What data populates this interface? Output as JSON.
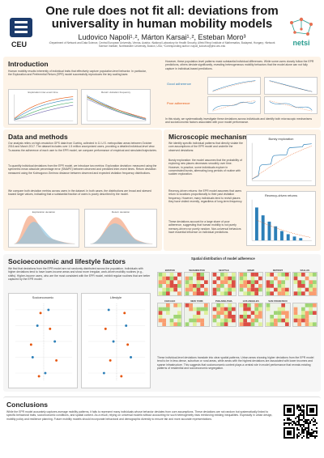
{
  "header": {
    "title_line1": "One rule does not fit all: deviations from",
    "title_line2": "universality in human mobility models",
    "authors": "Ludovico Napoli¹˒², Márton Karsai¹˒², Esteban Moro³",
    "affiliations": "¹Department of Network and Data Science, Central European University, Vienna, Austria; ²National Laboratory for Health Security, Alfréd Rényi Institute of Mathematics, Budapest, Hungary; ³Network Science Institute, Northeastern University, Boston, USA; *Corresponding author: napoli_ludovico@phd.ceu.edu",
    "ceu_label": "CEU",
    "nets_label": "netsi"
  },
  "intro": {
    "title": "Introduction",
    "text_left": "Human mobility results inherently of individual traits that effectively capture population-level behavior. In particular, the Exploration and Preferential Return (EPR) model successfully reproduces the key scaling laws:",
    "text_right": "However, these population-level patterns mask substantial individual differences. While some users closely follow the EPR predictions, others deviate significantly, revealing heterogeneous mobility behaviors that the model alone can not fully capture in individual-based predictions.",
    "bottom_text": "In this study, we systematically investigate these deviations across individuals and identify both microscopic mechanisms and socioeconomic factors associated with poor model performance.",
    "chart1_title": "Exploration inter-event time",
    "chart2_title": "Return visitation frequency",
    "good_label": "Good adherence",
    "poor_label": "Poor adherence"
  },
  "data": {
    "title": "Data and methods",
    "text": "Our analysis relies on high-resolution GPS data from Cuebiq, collected in 11 U.S. metropolitan areas between October 2016 and March 2017. The dataset includes over 1.5 million anonymized users, providing a detailed individual-level view. To assess the adherence of each user to the EPR model, we compare performance of empirical and simulated trajectories.",
    "text2": "To quantify individual deviations from the EPR model, we introduce two metrics: Exploration deviation: measured using the symmetric mean absolute percentage error (SMAPE) between observed and predicted inter-event times. Return deviation: measured using the Kolmogorov-Smirnov distance between observed and expected visitation frequency distributions.",
    "text3": "We compare both deviation metrics across users in the dataset. In both cases, the distributions are broad and skewed toward larger values, indicating that a substantial fraction of users is poorly described by the model.",
    "chart1_title": "Exploration deviation",
    "chart2_title": "Return deviation"
  },
  "micro": {
    "title": "Microscopic mechanisms",
    "text": "We identify specific individual patterns that directly violate the core assumptions of the EPR model and underlie the observed deviations:",
    "bursty_title": "Bursty exploration",
    "bursty_text": "Bursty exploration: the model assumes that the probability of exploring new places decreases smoothly over time. However, in practice, some individuals explore in concentrated bursts, alternating long periods of routine with sudden exploration.",
    "recency_title": "Recency-driven returns",
    "recency_text": "Recency-driven returns: the EPR model assumes that users return to locations proportionally to their past visitation frequency. However, many individuals tend to revisit places they have visited recently, regardless of long-term frequency.",
    "summary": "These deviations account for a large share of poor adherence, suggesting that human mobility is not purely memory-driven nor purely random. Non-universal behaviors have essential influence on individual predictions."
  },
  "socio": {
    "title": "Socioeconomic and lifestyle factors",
    "text": "We find that deviations from the EPR model are not randomly distributed across the population. Individuals with higher deviations tend to have lower-income areas and show more irregular, work-driven mobility routines (e.g., shifts). Higher-income users, who are the most consistent with the EPR model, exhibit regular routines that are better captured by the EPR model.",
    "chart1_title": "Socioeconomic",
    "chart2_title": "Lifestyle",
    "map_title": "Spatial distribution of model adherence",
    "map_text": "These individual-level deviations translate into clear spatial patterns. Urban areas showing higher deviations from the EPR model tend to be in less dense, suburban or rural areas, while areas with the highest deviations are associated with lower incomes and sparse infrastructure. This suggests that socioeconomic context plays a central role in model performance that reveals existing patterns of residential and socioeconomic segregation.",
    "cities": [
      "BOSTON",
      "WASHINGTON",
      "SEATTLE",
      "MIAMI",
      "DETROIT",
      "DALLAS",
      "CHICAGO",
      "NEW YORK",
      "PHILADELPHIA",
      "LOS ANGELES",
      "SAN FRANCISCO",
      ""
    ]
  },
  "conclusions": {
    "title": "Conclusions",
    "text": "While the EPR model accurately captures average mobility patterns, it fails to represent many individuals whose behavior deviates from core assumptions. These deviations are not random but systematically linked to specific behavioral traits, socioeconomic conditions, and spatial context. As a result, relying on universal models without accounting for such heterogeneity risks reinforcing existing inequalities. Especially in urban design, mobility policy and resilience planning. Future mobility models should incorporate behavioral and demographic diversity to ensure fair and more accurate representations."
  },
  "colors": {
    "accent_red": "#c0392b",
    "panel_bg": "#fdf3e7",
    "good_blue": "#2c7fb8",
    "poor_orange": "#e6550d",
    "teal": "#41ab5d"
  }
}
